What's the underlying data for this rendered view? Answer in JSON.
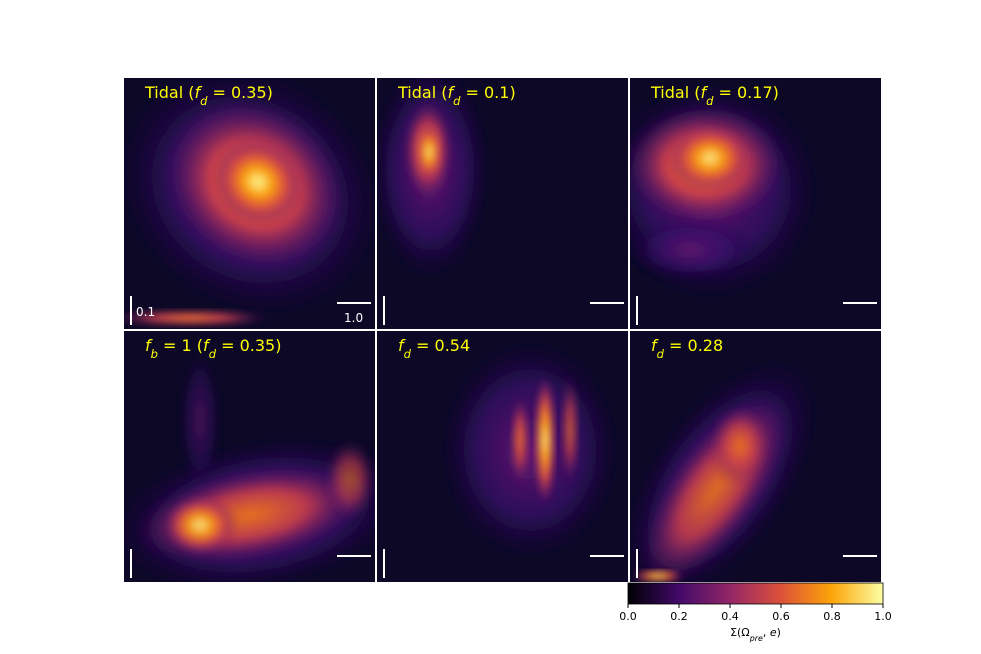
{
  "panels": [
    {
      "title": [
        {
          "text": "Tidal ("
        },
        {
          "text": "f",
          "italic": true
        },
        {
          "text": "d",
          "sub": true,
          "italic": true
        },
        {
          "text": " = 0.35)"
        }
      ],
      "scale_labels": [
        "0.1",
        "1.0"
      ]
    },
    {
      "title": [
        {
          "text": "Tidal ("
        },
        {
          "text": "f",
          "italic": true
        },
        {
          "text": "d",
          "sub": true,
          "italic": true
        },
        {
          "text": " = 0.1)"
        }
      ]
    },
    {
      "title": [
        {
          "text": "Tidal ("
        },
        {
          "text": "f",
          "italic": true
        },
        {
          "text": "d",
          "sub": true,
          "italic": true
        },
        {
          "text": " = 0.17)"
        }
      ]
    },
    {
      "title": [
        {
          "text": "f",
          "italic": true
        },
        {
          "text": "b",
          "sub": true,
          "italic": true
        },
        {
          "text": " = 1 ("
        },
        {
          "text": "f",
          "italic": true
        },
        {
          "text": "d",
          "sub": true,
          "italic": true
        },
        {
          "text": " = 0.35)"
        }
      ]
    },
    {
      "title": [
        {
          "text": "f",
          "italic": true
        },
        {
          "text": "d",
          "sub": true,
          "italic": true
        },
        {
          "text": " = 0.54"
        }
      ]
    },
    {
      "title": [
        {
          "text": "f",
          "italic": true
        },
        {
          "text": "d",
          "sub": true,
          "italic": true
        },
        {
          "text": " = 0.28"
        }
      ]
    }
  ],
  "colorbar": {
    "label": [
      {
        "text": "Σ(Ω"
      },
      {
        "text": "pre",
        "sub": true,
        "italic": true
      },
      {
        "text": ", "
      },
      {
        "text": "e",
        "italic": true
      },
      {
        "text": ")"
      }
    ],
    "lim": [
      0,
      1
    ],
    "colors": [
      "#000004",
      "#420a68",
      "#932667",
      "#dd513a",
      "#fca50a",
      "#fcffa4"
    ],
    "ticks": [
      {
        "value": 0,
        "label": "0.0"
      },
      {
        "value": 0.2,
        "label": "0.2"
      },
      {
        "value": 0.4,
        "label": "0.4"
      },
      {
        "value": 0.6,
        "label": "0.6"
      },
      {
        "value": 0.8,
        "label": "0.8"
      },
      {
        "value": 1,
        "label": "1.0"
      }
    ]
  }
}
